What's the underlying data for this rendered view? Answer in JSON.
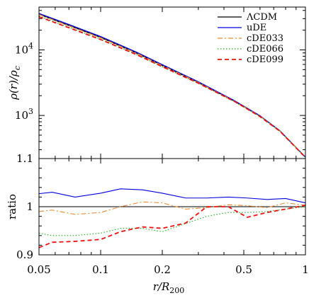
{
  "chart_data": [
    {
      "type": "line",
      "xscale": "log",
      "yscale": "log",
      "xlim": [
        0.05,
        1
      ],
      "ylim": [
        220,
        45000
      ],
      "ylabel": "ρ(r)/ρ_c",
      "ylabel_parts": {
        "rho": "ρ",
        "r": "r",
        "rest": ")/ρ",
        "sub": "c"
      },
      "yticks": [
        {
          "value": 1000,
          "label_base": "10",
          "label_exp": "3"
        },
        {
          "value": 10000,
          "label_base": "10",
          "label_exp": "4"
        }
      ],
      "legend_position": "top-right",
      "grid": false,
      "series": [
        {
          "name": "ΛCDM",
          "color": "#000000",
          "dash": "",
          "x": [
            0.05,
            0.07,
            0.1,
            0.15,
            0.2,
            0.3,
            0.45,
            0.6,
            0.75,
            1.0
          ],
          "y": [
            35000,
            23600,
            15500,
            8900,
            5800,
            3200,
            1650,
            980,
            580,
            230
          ]
        },
        {
          "name": "uDE",
          "color": "#0000dd",
          "dash": "",
          "x": [
            0.05,
            0.07,
            0.1,
            0.15,
            0.2,
            0.3,
            0.45,
            0.6,
            0.75,
            1.0
          ],
          "y": [
            36000,
            24400,
            16000,
            9200,
            5950,
            3260,
            1680,
            990,
            585,
            231
          ]
        },
        {
          "name": "cDE033",
          "color": "#e68a2e",
          "dash": "7,3,2,3",
          "x": [
            0.05,
            0.07,
            0.1,
            0.15,
            0.2,
            0.3,
            0.45,
            0.6,
            0.75,
            1.0
          ],
          "y": [
            34700,
            23300,
            15300,
            8870,
            5780,
            3180,
            1650,
            975,
            580,
            230
          ]
        },
        {
          "name": "cDE066",
          "color": "#22aa22",
          "dash": "1.5,2.5",
          "x": [
            0.05,
            0.07,
            0.1,
            0.15,
            0.2,
            0.3,
            0.45,
            0.6,
            0.75,
            1.0
          ],
          "y": [
            33000,
            22100,
            14600,
            8480,
            5530,
            3090,
            1620,
            965,
            578,
            230
          ]
        },
        {
          "name": "cDE099",
          "color": "#ee1111",
          "dash": "6,4",
          "x": [
            0.05,
            0.07,
            0.1,
            0.15,
            0.2,
            0.3,
            0.45,
            0.6,
            0.75,
            1.0
          ],
          "y": [
            32000,
            21800,
            14400,
            8450,
            5550,
            3100,
            1640,
            960,
            575,
            229
          ]
        }
      ]
    },
    {
      "type": "line",
      "xscale": "log",
      "yscale": "linear",
      "xlim": [
        0.05,
        1
      ],
      "ylim": [
        0.9,
        1.1
      ],
      "xlabel": "r/R_200",
      "xlabel_parts": {
        "main": "r/R",
        "sub": "200"
      },
      "ylabel": "ratio",
      "yticks": [
        0.9,
        1,
        1.1
      ],
      "ytick_labels": [
        "0.9",
        "1",
        "1.1"
      ],
      "xticks": [
        0.05,
        0.1,
        0.2,
        0.5,
        1
      ],
      "xtick_labels": [
        "0.05",
        "0.1",
        "0.2",
        "0.5",
        "1"
      ],
      "grid": false,
      "series": [
        {
          "name": "ΛCDM",
          "color": "#000000",
          "dash": "",
          "x": [
            0.05,
            1.0
          ],
          "y": [
            1.0,
            1.0
          ]
        },
        {
          "name": "uDE",
          "color": "#0000dd",
          "dash": "",
          "x": [
            0.05,
            0.058,
            0.075,
            0.1,
            0.125,
            0.16,
            0.2,
            0.26,
            0.33,
            0.42,
            0.52,
            0.65,
            0.8,
            1.0
          ],
          "y": [
            1.027,
            1.03,
            1.02,
            1.028,
            1.037,
            1.035,
            1.028,
            1.018,
            1.018,
            1.02,
            1.018,
            1.015,
            1.017,
            1.008
          ]
        },
        {
          "name": "cDE033",
          "color": "#e68a2e",
          "dash": "7,3,2,3",
          "x": [
            0.05,
            0.058,
            0.075,
            0.1,
            0.125,
            0.16,
            0.2,
            0.26,
            0.33,
            0.42,
            0.52,
            0.65,
            0.8,
            1.0
          ],
          "y": [
            0.99,
            0.993,
            0.984,
            0.988,
            1.0,
            1.01,
            1.008,
            0.995,
            0.998,
            1.004,
            1.002,
            0.998,
            1.008,
            1.003
          ]
        },
        {
          "name": "cDE066",
          "color": "#22aa22",
          "dash": "1.5,2.5",
          "x": [
            0.05,
            0.058,
            0.075,
            0.1,
            0.125,
            0.16,
            0.2,
            0.26,
            0.33,
            0.42,
            0.52,
            0.65,
            0.8,
            1.0
          ],
          "y": [
            0.945,
            0.94,
            0.94,
            0.945,
            0.955,
            0.955,
            0.948,
            0.965,
            0.98,
            0.988,
            0.988,
            0.99,
            0.995,
            1.0
          ]
        },
        {
          "name": "cDE099",
          "color": "#ee1111",
          "dash": "6,4",
          "x": [
            0.05,
            0.058,
            0.075,
            0.1,
            0.125,
            0.16,
            0.2,
            0.26,
            0.33,
            0.42,
            0.52,
            0.65,
            0.8,
            1.0
          ],
          "y": [
            0.915,
            0.926,
            0.928,
            0.932,
            0.948,
            0.958,
            0.955,
            0.966,
            1.0,
            1.0,
            0.978,
            0.988,
            0.995,
            1.003
          ]
        }
      ]
    }
  ]
}
